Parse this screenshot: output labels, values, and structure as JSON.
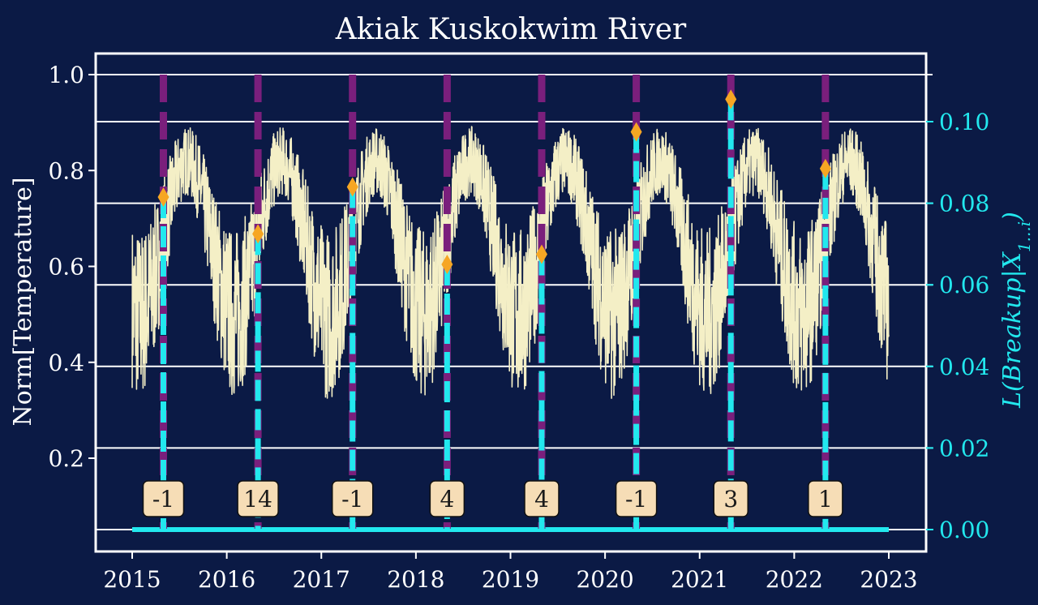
{
  "chart_data": {
    "type": "line",
    "title": "Akiak Kuskokwim River",
    "ylabel": "Norm[Temperature]",
    "y2label_main": "L(Breakup|X",
    "y2label_sub": "1...i",
    "y2label_end": ")",
    "xlim": [
      2015,
      2023
    ],
    "ylim": [
      0.0,
      1.05
    ],
    "y2lim": [
      -0.003,
      0.112
    ],
    "x_ticks": [
      2015,
      2016,
      2017,
      2018,
      2019,
      2020,
      2021,
      2022,
      2023
    ],
    "x_tick_labels": [
      "2015",
      "2016",
      "2017",
      "2018",
      "2019",
      "2020",
      "2021",
      "2022",
      "2023"
    ],
    "y_ticks": [
      0.2,
      0.4,
      0.6,
      0.8,
      1.0
    ],
    "y_tick_labels": [
      "0.2",
      "0.4",
      "0.6",
      "0.8",
      "1.0"
    ],
    "y2_ticks": [
      0.0,
      0.02,
      0.04,
      0.06,
      0.08,
      0.1
    ],
    "y2_tick_labels": [
      "0.00",
      "0.02",
      "0.04",
      "0.06",
      "0.08",
      "0.10"
    ],
    "grid": "horizontal",
    "colors": {
      "background": "#0b1a45",
      "temperature": "#f4efc6",
      "likelihood": "#22e8ee",
      "breakup_line": "#7a1f7c",
      "breakup_marker": "#f6a623",
      "label_box": "#f6ddb6",
      "grid": "#ffffff"
    },
    "temperature_series": {
      "season_low": 0.5,
      "season_high": 0.82,
      "peak_offset_year": 0.58,
      "noise": 0.09
    },
    "breakups": [
      {
        "x": 2015.33,
        "marker_y": 0.0815,
        "lag": "-1"
      },
      {
        "x": 2016.33,
        "marker_y": 0.0725,
        "lag": "14"
      },
      {
        "x": 2017.33,
        "marker_y": 0.084,
        "lag": "-1"
      },
      {
        "x": 2018.33,
        "marker_y": 0.065,
        "lag": "4"
      },
      {
        "x": 2019.33,
        "marker_y": 0.0675,
        "lag": "4"
      },
      {
        "x": 2020.33,
        "marker_y": 0.0975,
        "lag": "-1"
      },
      {
        "x": 2021.33,
        "marker_y": 0.1055,
        "lag": "3"
      },
      {
        "x": 2022.33,
        "marker_y": 0.0885,
        "lag": "1"
      }
    ]
  }
}
